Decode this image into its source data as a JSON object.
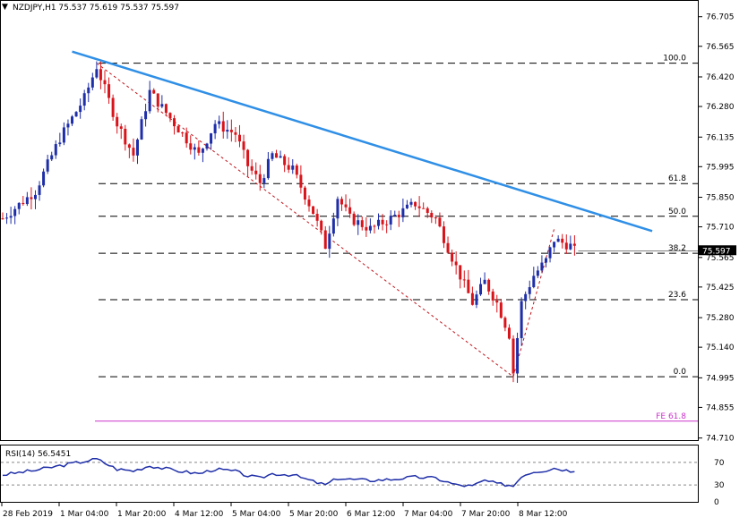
{
  "header": {
    "symbol_line": "NZDJPY,H1  75.537 75.619 75.537 75.597"
  },
  "rsi_header": "RSI(14) 56.5451",
  "current_price_label": "75.597",
  "colors": {
    "bull": "#1f2fa8",
    "bear": "#d8141b",
    "trendline": "#2f8fe6",
    "zigzag": "#c0141b",
    "fe": "#cc33cc",
    "rsi": "#1f2fa8",
    "grid": "#000000",
    "background": "#ffffff"
  },
  "chart_data": [
    {
      "type": "candlestick",
      "title": "",
      "y_ticks": [
        "76.705",
        "76.565",
        "76.420",
        "76.280",
        "76.135",
        "75.995",
        "75.850",
        "75.710",
        "75.565",
        "75.425",
        "75.280",
        "75.140",
        "74.995",
        "74.855",
        "74.710"
      ],
      "ylim": [
        74.7,
        76.78
      ],
      "x_ticks": [
        "28 Feb 2019",
        "1 Mar 04:00",
        "1 Mar 20:00",
        "4 Mar 12:00",
        "5 Mar 04:00",
        "5 Mar 20:00",
        "6 Mar 12:00",
        "7 Mar 04:00",
        "7 Mar 20:00",
        "8 Mar 12:00"
      ],
      "fib_levels": [
        {
          "label": "100.0",
          "value": 76.485
        },
        {
          "label": "61.8",
          "value": 75.915
        },
        {
          "label": "50.0",
          "value": 75.76
        },
        {
          "label": "38.2",
          "value": 75.585
        },
        {
          "label": "23.6",
          "value": 75.365
        },
        {
          "label": "0.0",
          "value": 75.0
        }
      ],
      "fe_level": {
        "label": "FE 61.8",
        "value": 74.79
      },
      "trendline": [
        {
          "bar": 17,
          "price": 76.54
        },
        {
          "bar": 159,
          "price": 75.69
        }
      ],
      "zigzag": [
        {
          "bar": 23,
          "price": 76.485
        },
        {
          "bar": 125,
          "price": 75.0
        },
        {
          "bar": 135,
          "price": 75.7
        }
      ],
      "last_price": 75.597,
      "anchors": [
        [
          0,
          75.75
        ],
        [
          8,
          75.88
        ],
        [
          14,
          76.13
        ],
        [
          20,
          76.32
        ],
        [
          23,
          76.47
        ],
        [
          28,
          76.2
        ],
        [
          32,
          76.05
        ],
        [
          36,
          76.35
        ],
        [
          42,
          76.2
        ],
        [
          48,
          76.05
        ],
        [
          52,
          76.2
        ],
        [
          57,
          76.15
        ],
        [
          60,
          76.0
        ],
        [
          63,
          75.92
        ],
        [
          66,
          76.05
        ],
        [
          71,
          75.98
        ],
        [
          76,
          75.78
        ],
        [
          79,
          75.62
        ],
        [
          82,
          75.85
        ],
        [
          85,
          75.75
        ],
        [
          90,
          75.7
        ],
        [
          95,
          75.75
        ],
        [
          101,
          75.82
        ],
        [
          106,
          75.75
        ],
        [
          111,
          75.52
        ],
        [
          115,
          75.35
        ],
        [
          118,
          75.45
        ],
        [
          121,
          75.35
        ],
        [
          124,
          75.2
        ],
        [
          125,
          75.02
        ],
        [
          127,
          75.35
        ],
        [
          130,
          75.48
        ],
        [
          133,
          75.55
        ],
        [
          135,
          75.65
        ],
        [
          139,
          75.62
        ],
        [
          140,
          75.597
        ]
      ],
      "rsi": {
        "title": "RSI(14) 56.5451",
        "ylim": [
          0,
          100
        ],
        "levels": [
          70,
          30
        ],
        "y_ticks": [
          "70",
          "30",
          "0"
        ],
        "anchors": [
          [
            0,
            48
          ],
          [
            8,
            56
          ],
          [
            14,
            64
          ],
          [
            20,
            72
          ],
          [
            23,
            76
          ],
          [
            28,
            58
          ],
          [
            32,
            55
          ],
          [
            36,
            64
          ],
          [
            42,
            56
          ],
          [
            48,
            50
          ],
          [
            52,
            58
          ],
          [
            57,
            54
          ],
          [
            60,
            46
          ],
          [
            63,
            42
          ],
          [
            66,
            50
          ],
          [
            71,
            48
          ],
          [
            76,
            36
          ],
          [
            79,
            30
          ],
          [
            82,
            42
          ],
          [
            85,
            40
          ],
          [
            90,
            38
          ],
          [
            95,
            40
          ],
          [
            101,
            44
          ],
          [
            106,
            42
          ],
          [
            111,
            30
          ],
          [
            115,
            28
          ],
          [
            118,
            38
          ],
          [
            121,
            32
          ],
          [
            124,
            30
          ],
          [
            125,
            28
          ],
          [
            127,
            46
          ],
          [
            130,
            54
          ],
          [
            133,
            56
          ],
          [
            135,
            60
          ],
          [
            139,
            55
          ],
          [
            140,
            56.5451
          ]
        ]
      }
    }
  ]
}
